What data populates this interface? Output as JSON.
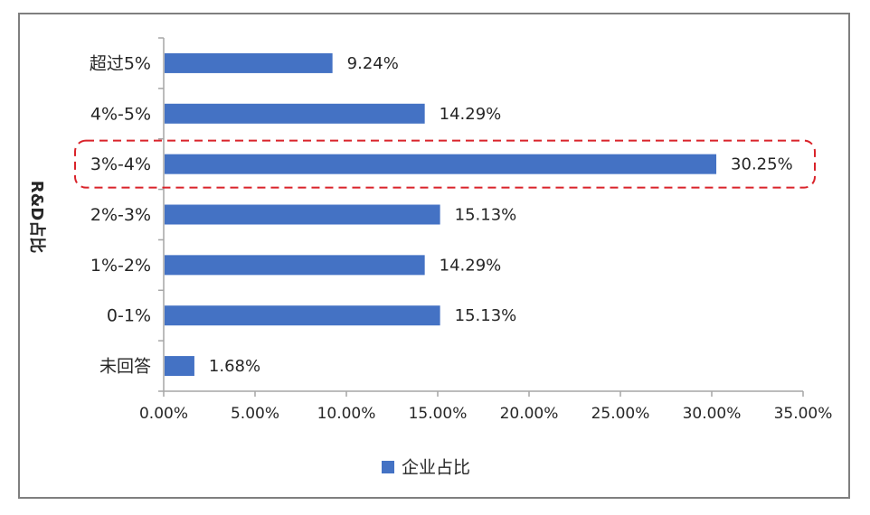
{
  "chart_data": {
    "type": "bar",
    "orientation": "horizontal",
    "categories": [
      "超过5%",
      "4%-5%",
      "3%-4%",
      "2%-3%",
      "1%-2%",
      "0-1%",
      "未回答"
    ],
    "series": [
      {
        "name": "企业占比",
        "values": [
          9.24,
          14.29,
          30.25,
          15.13,
          14.29,
          15.13,
          1.68
        ],
        "data_labels": [
          "9.24%",
          "14.29%",
          "30.25%",
          "15.13%",
          "14.29%",
          "15.13%",
          "1.68%"
        ]
      }
    ],
    "ylabel": "R&D占比",
    "xlabel": "",
    "xlim": [
      0,
      35
    ],
    "x_ticks": [
      "0.00%",
      "5.00%",
      "10.00%",
      "15.00%",
      "20.00%",
      "25.00%",
      "30.00%",
      "35.00%"
    ],
    "grid": false,
    "legend": "bottom",
    "highlight": "3%-4%",
    "colors": {
      "bar": "#4472c4",
      "highlight_box": "#d9232a",
      "axis": "#a6a6a6",
      "text": "#262626"
    }
  }
}
